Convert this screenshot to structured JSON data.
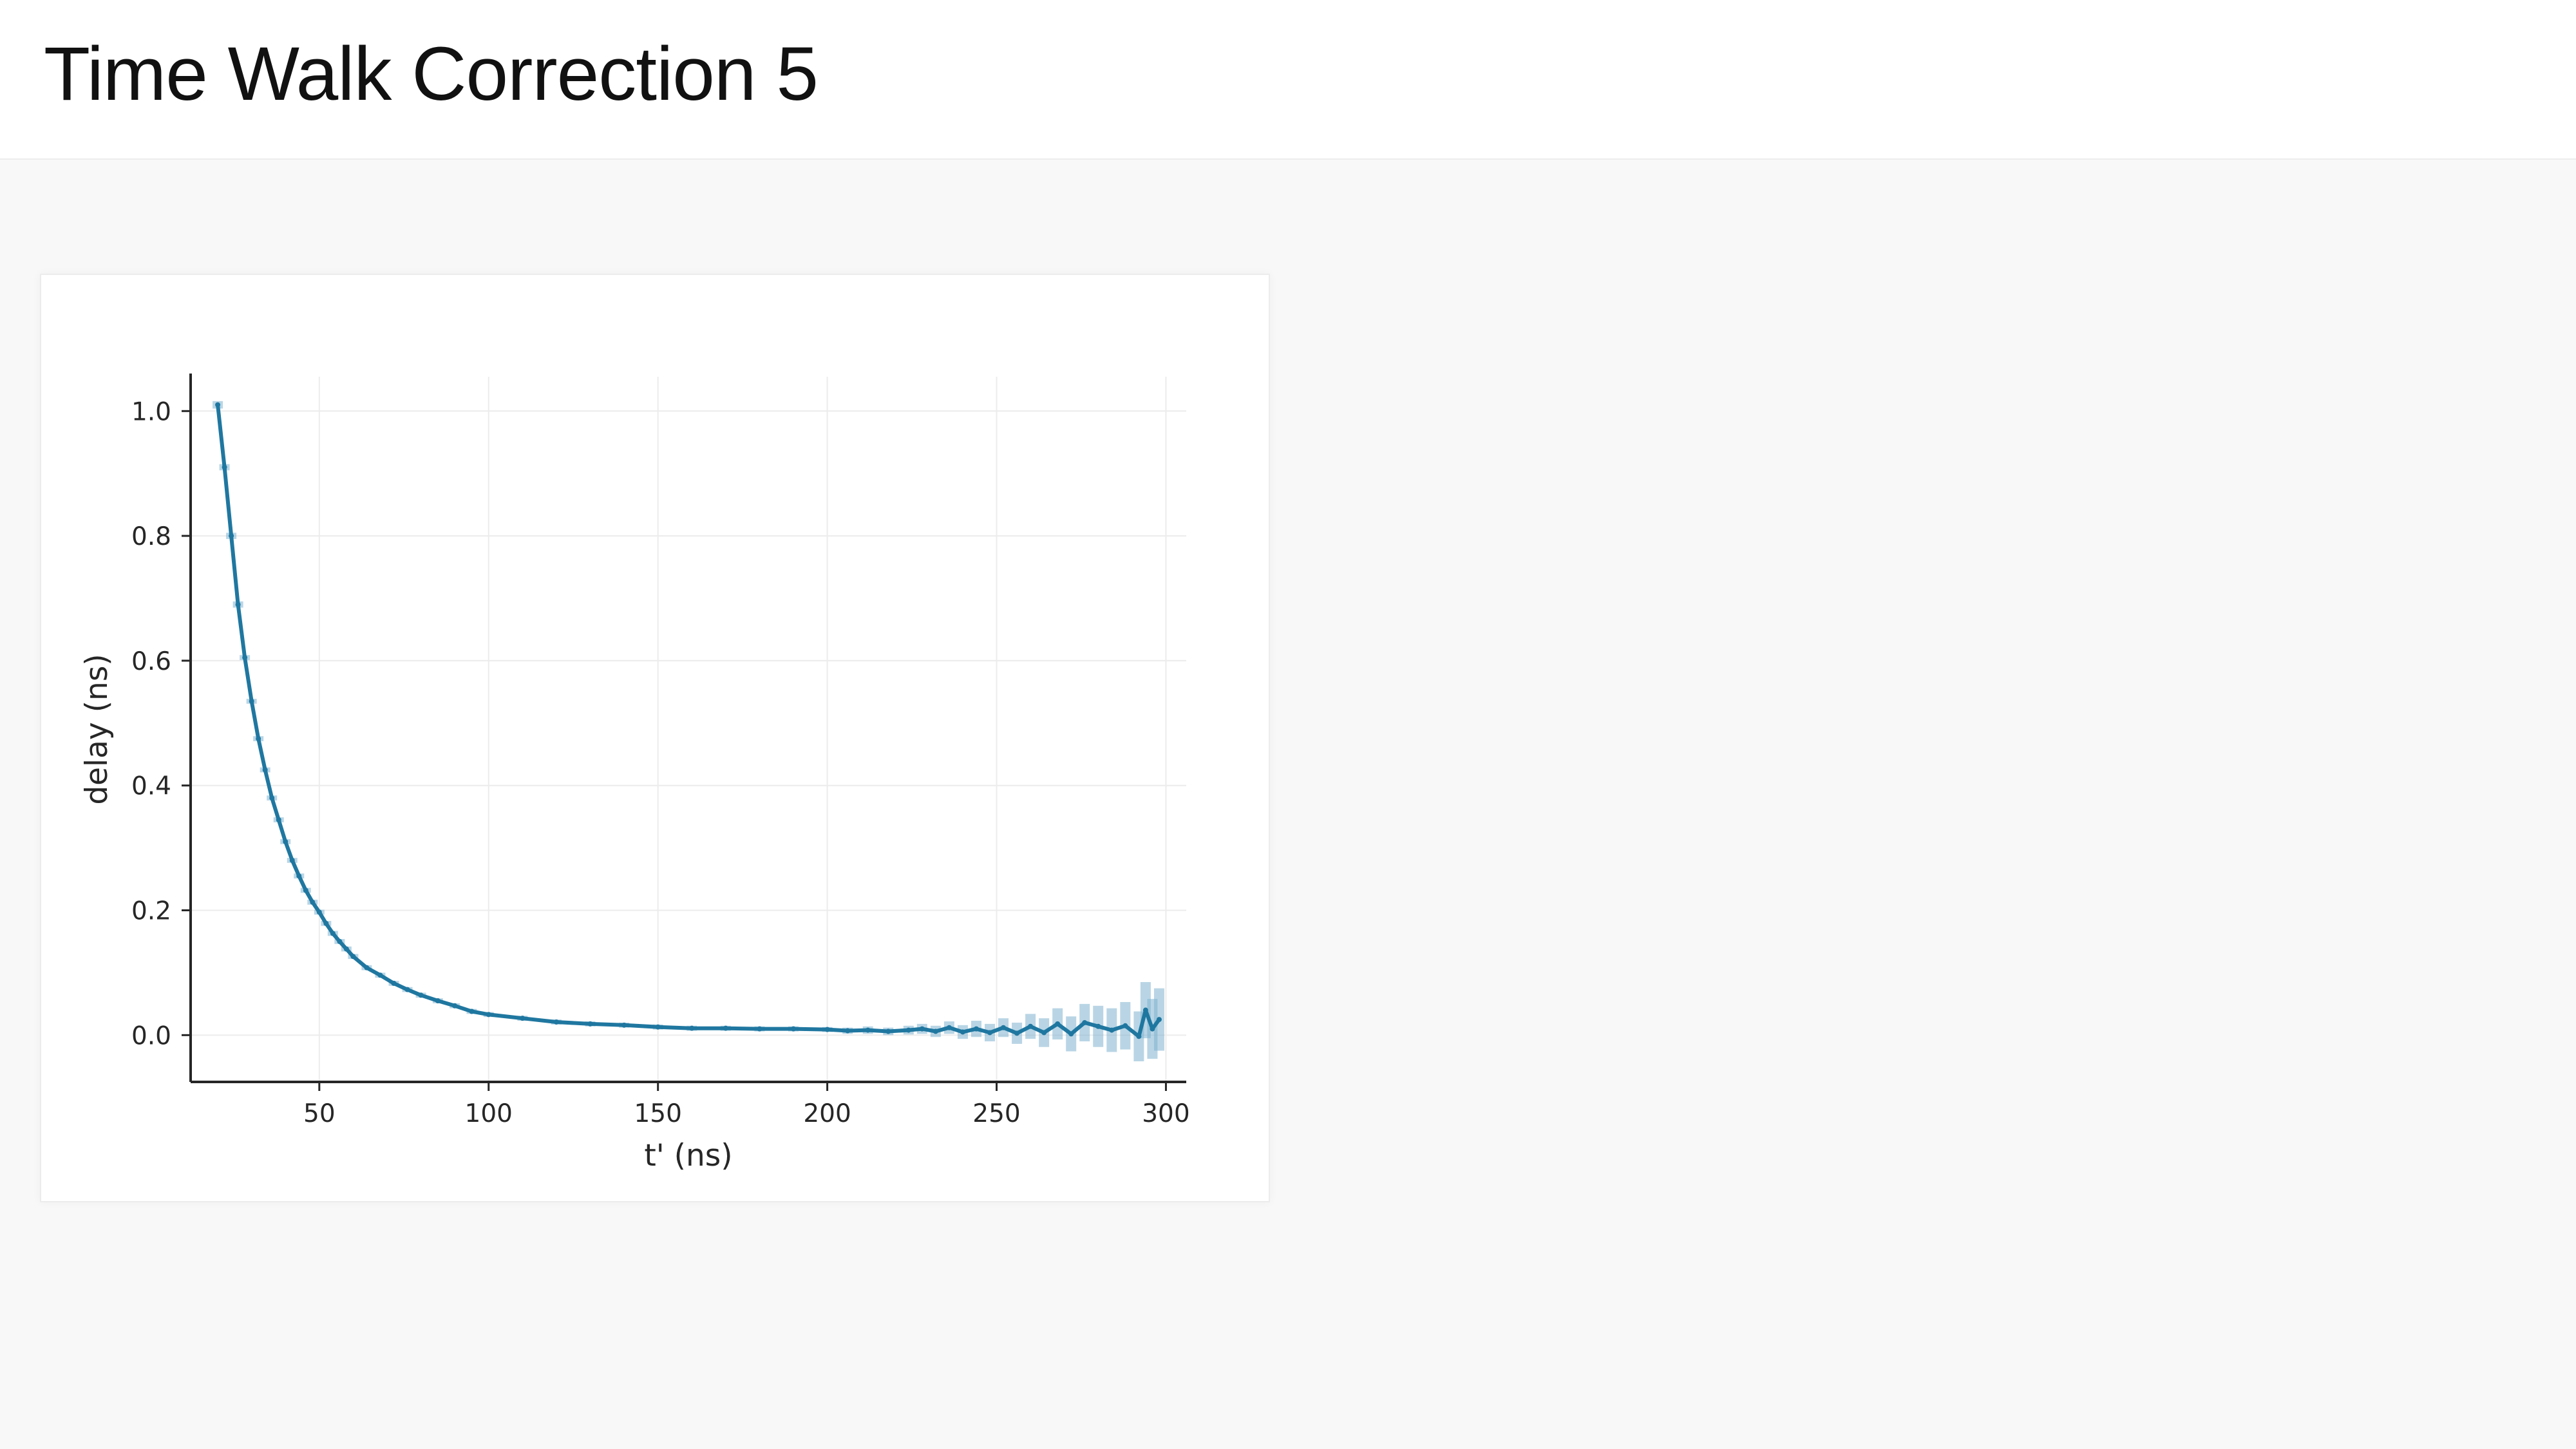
{
  "header": {
    "title": "Time Walk Correction 5"
  },
  "chart_data": {
    "type": "line",
    "title": "",
    "xlabel": "t' (ns)",
    "ylabel": "delay (ns)",
    "xlim": [
      12,
      306
    ],
    "ylim": [
      -0.075,
      1.055
    ],
    "xticks": [
      50,
      100,
      150,
      200,
      250,
      300
    ],
    "xtick_labels": [
      "50",
      "100",
      "150",
      "200",
      "250",
      "300"
    ],
    "yticks": [
      0.0,
      0.2,
      0.4,
      0.6,
      0.8,
      1.0
    ],
    "ytick_labels": [
      "0.0",
      "0.2",
      "0.4",
      "0.6",
      "0.8",
      "1.0"
    ],
    "grid": true,
    "colors": {
      "line": "#1f77a0",
      "error_band": "#7fb3cf",
      "axis": "#262626",
      "grid": "#ececec"
    },
    "series": [
      {
        "x": [
          20,
          22,
          24,
          26,
          28,
          30,
          32,
          34,
          36,
          38,
          40,
          42,
          44,
          46,
          48,
          50,
          52,
          54,
          56,
          58,
          60,
          64,
          68,
          72,
          76,
          80,
          85,
          90,
          95,
          100,
          110,
          120,
          130,
          140,
          150,
          160,
          170,
          180,
          190,
          200,
          206,
          212,
          218,
          224,
          228,
          232,
          236,
          240,
          244,
          248,
          252,
          256,
          260,
          264,
          268,
          272,
          276,
          280,
          284,
          288,
          292,
          294,
          296,
          298
        ],
        "y": [
          1.01,
          0.91,
          0.8,
          0.69,
          0.605,
          0.535,
          0.475,
          0.425,
          0.38,
          0.345,
          0.31,
          0.28,
          0.255,
          0.232,
          0.213,
          0.197,
          0.179,
          0.163,
          0.15,
          0.138,
          0.126,
          0.108,
          0.096,
          0.083,
          0.073,
          0.064,
          0.055,
          0.047,
          0.038,
          0.033,
          0.027,
          0.021,
          0.018,
          0.016,
          0.013,
          0.011,
          0.011,
          0.01,
          0.01,
          0.009,
          0.007,
          0.008,
          0.006,
          0.008,
          0.01,
          0.006,
          0.012,
          0.005,
          0.01,
          0.004,
          0.012,
          0.003,
          0.014,
          0.004,
          0.018,
          0.002,
          0.02,
          0.014,
          0.008,
          0.015,
          -0.002,
          0.04,
          0.01,
          0.025
        ],
        "err": [
          0.006,
          0.005,
          0.005,
          0.005,
          0.004,
          0.004,
          0.004,
          0.004,
          0.003,
          0.003,
          0.003,
          0.003,
          0.003,
          0.003,
          0.003,
          0.003,
          0.003,
          0.002,
          0.002,
          0.002,
          0.002,
          0.002,
          0.002,
          0.002,
          0.002,
          0.002,
          0.002,
          0.002,
          0.002,
          0.002,
          0.002,
          0.002,
          0.002,
          0.002,
          0.003,
          0.003,
          0.003,
          0.004,
          0.004,
          0.004,
          0.005,
          0.006,
          0.006,
          0.007,
          0.008,
          0.009,
          0.01,
          0.011,
          0.013,
          0.014,
          0.015,
          0.017,
          0.02,
          0.023,
          0.025,
          0.028,
          0.03,
          0.033,
          0.035,
          0.038,
          0.04,
          0.045,
          0.048,
          0.05
        ]
      }
    ]
  }
}
